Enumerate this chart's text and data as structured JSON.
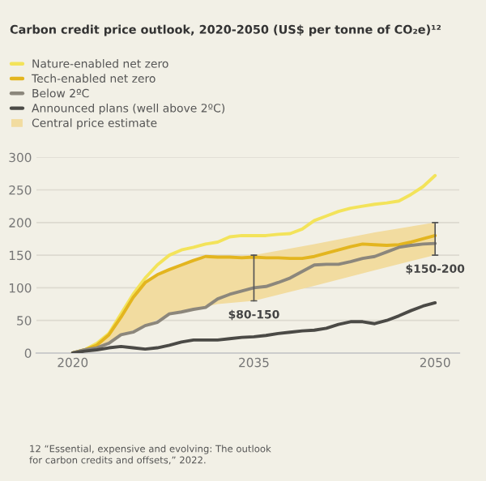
{
  "chart_data": {
    "type": "line",
    "title": "Carbon credit price outlook, 2020-2050 (US$ per tonne of CO₂e)¹²",
    "x": [
      2020,
      2021,
      2022,
      2023,
      2024,
      2025,
      2026,
      2027,
      2028,
      2029,
      2030,
      2031,
      2032,
      2033,
      2034,
      2035,
      2036,
      2037,
      2038,
      2039,
      2040,
      2041,
      2042,
      2043,
      2044,
      2045,
      2046,
      2047,
      2048,
      2049,
      2050
    ],
    "series": [
      {
        "name": "Nature-enabled net zero",
        "color": "#f3e35a",
        "values": [
          0,
          5,
          15,
          30,
          60,
          90,
          115,
          135,
          150,
          158,
          162,
          167,
          170,
          178,
          180,
          180,
          180,
          182,
          183,
          190,
          203,
          210,
          217,
          222,
          225,
          228,
          230,
          233,
          243,
          255,
          272
        ]
      },
      {
        "name": "Tech-enabled net zero",
        "color": "#e3b51f",
        "values": [
          0,
          5,
          12,
          28,
          55,
          85,
          108,
          120,
          128,
          135,
          142,
          148,
          147,
          147,
          146,
          147,
          146,
          146,
          145,
          145,
          148,
          153,
          158,
          163,
          167,
          166,
          165,
          166,
          170,
          175,
          180
        ]
      },
      {
        "name": "Below 2ºC",
        "color": "#8c877c",
        "values": [
          0,
          5,
          8,
          15,
          28,
          32,
          42,
          47,
          60,
          63,
          67,
          70,
          83,
          90,
          95,
          100,
          102,
          108,
          115,
          125,
          135,
          136,
          136,
          140,
          145,
          148,
          155,
          162,
          165,
          167,
          168
        ]
      },
      {
        "name": "Announced plans (well above 2ºC)",
        "color": "#4b4a46",
        "values": [
          0,
          3,
          5,
          8,
          10,
          8,
          6,
          8,
          12,
          17,
          20,
          20,
          20,
          22,
          24,
          25,
          27,
          30,
          32,
          34,
          35,
          38,
          44,
          48,
          48,
          45,
          50,
          57,
          65,
          72,
          77
        ]
      },
      {
        "name": "Central price estimate",
        "type": "area",
        "color": "#f2dca0",
        "x": [
          2020,
          2022,
          2024,
          2026,
          2028,
          2030,
          2032,
          2035,
          2040,
          2045,
          2050
        ],
        "values": [
          null,
          null,
          null,
          null,
          null,
          null,
          null,
          null,
          null,
          null,
          null
        ],
        "lower": [
          0,
          8,
          28,
          42,
          60,
          67,
          75,
          80,
          103,
          127,
          150
        ],
        "upper": [
          0,
          12,
          55,
          108,
          128,
          142,
          148,
          150,
          167,
          185,
          200
        ]
      }
    ],
    "xlim": [
      2017,
      2052
    ],
    "ylim": [
      0,
      300
    ],
    "xticks": [
      2020,
      2035,
      2050
    ],
    "yticks": [
      0,
      50,
      100,
      150,
      200,
      250,
      300
    ],
    "grid": "y",
    "legend": "top left",
    "annotations": [
      {
        "text": "$80-150",
        "x": 2035,
        "y": 80
      },
      {
        "text": "$150-200",
        "x": 2050,
        "y": 150
      },
      "12 “Essential, expensive and evolving: The outlook\nfor carbon credits and offsets,” 2022."
    ]
  }
}
